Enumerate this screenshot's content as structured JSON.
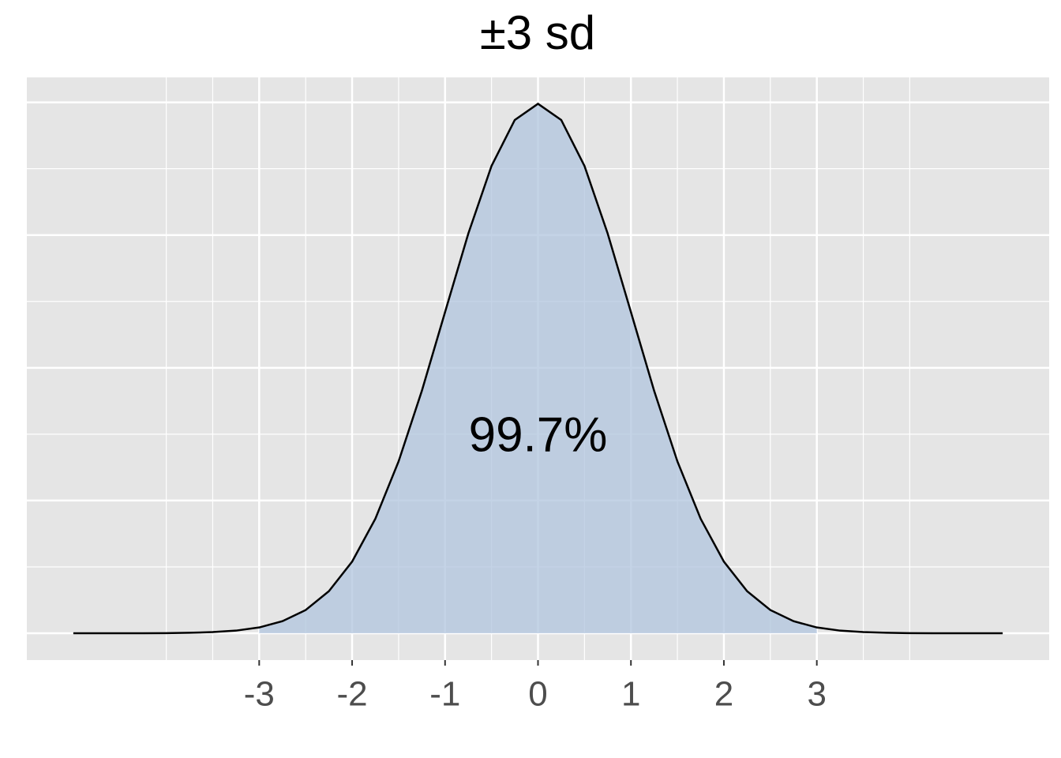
{
  "chart_data": {
    "type": "line",
    "title": "±3 sd",
    "x": [
      -5,
      -4.75,
      -4.5,
      -4.25,
      -4,
      -3.75,
      -3.5,
      -3.25,
      -3,
      -2.75,
      -2.5,
      -2.25,
      -2,
      -1.75,
      -1.5,
      -1.25,
      -1,
      -0.75,
      -0.5,
      -0.25,
      0,
      0.25,
      0.5,
      0.75,
      1,
      1.25,
      1.5,
      1.75,
      2,
      2.25,
      2.5,
      2.75,
      3,
      3.25,
      3.5,
      3.75,
      4,
      4.25,
      4.5,
      4.75,
      5
    ],
    "values": [
      0,
      0,
      0,
      0,
      0.0001,
      0.0004,
      0.0009,
      0.002,
      0.0044,
      0.0091,
      0.0175,
      0.0317,
      0.054,
      0.0863,
      0.1295,
      0.1826,
      0.242,
      0.3011,
      0.3521,
      0.3867,
      0.3989,
      0.3867,
      0.3521,
      0.3011,
      0.242,
      0.1826,
      0.1295,
      0.0863,
      0.054,
      0.0317,
      0.0175,
      0.0091,
      0.0044,
      0.002,
      0.0009,
      0.0004,
      0.0001,
      0,
      0,
      0,
      0
    ],
    "color": "#000000",
    "shade": [
      -3,
      3
    ],
    "shade_color": "#b0c4de",
    "annotation": {
      "text": "99.7%",
      "x": 0,
      "y": 0.147
    },
    "xlim": [
      -5.5,
      5.5
    ],
    "xticks": [
      -3,
      -2,
      -1,
      0,
      1,
      2,
      3
    ],
    "x_minor_grid": [
      -4,
      -3.5,
      -2.5,
      -1.5,
      -0.5,
      0.5,
      1.5,
      2.5,
      3.5,
      4
    ],
    "ylim": [
      -0.0202,
      0.4188
    ],
    "yticks": [
      0,
      0.1,
      0.2,
      0.3,
      0.4
    ],
    "y_minor_grid": [
      0.05,
      0.15,
      0.25,
      0.35
    ],
    "grid": true
  }
}
